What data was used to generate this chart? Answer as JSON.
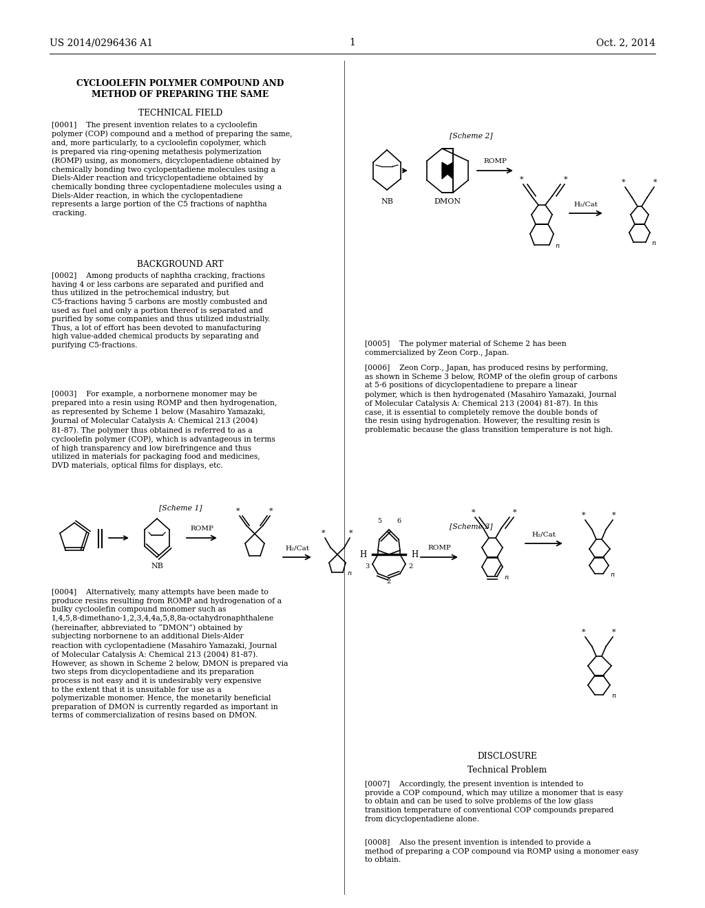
{
  "background_color": "#ffffff",
  "header_left": "US 2014/0296436 A1",
  "header_right": "Oct. 2, 2014",
  "header_center": "1",
  "title_line1": "CYCLOOLEFIN POLYMER COMPOUND AND",
  "title_line2": "METHOD OF PREPARING THE SAME",
  "section_technical": "TECHNICAL FIELD",
  "section_background": "BACKGROUND ART",
  "section_disclosure": "DISCLOSURE",
  "section_tech_problem": "Technical Problem",
  "para0001": "[0001]    The present invention relates to a cycloolefin polymer (COP) compound and a method of preparing the same, and, more particularly, to a cycloolefin copolymer, which is prepared via ring-opening metathesis polymerization (ROMP) using, as monomers, dicyclopentadiene obtained by chemically bonding two cyclopentadiene molecules using a Diels-Alder reaction and tricyclopentadiene obtained by chemically bonding three cyclopentadiene molecules using a Diels-Alder reaction, in which the cyclopentadiene represents a large portion of the C5 fractions of naphtha cracking.",
  "para0002": "[0002]    Among products of naphtha cracking, fractions having 4 or less carbons are separated and purified and thus utilized in the petrochemical industry, but C5-fractions having 5 carbons are mostly combusted and used as fuel and only a portion thereof is separated and purified by some companies and thus utilized industrially. Thus, a lot of effort has been devoted to manufacturing high value-added chemical products by separating and purifying C5-fractions.",
  "para0003": "[0003]    For example, a norbornene monomer may be prepared into a resin using ROMP and then hydrogenation, as represented by Scheme 1 below (Masahiro Yamazaki, Journal of Molecular Catalysis A: Chemical 213 (2004) 81-87). The polymer thus obtained is referred to as a cycloolefin polymer (COP), which is advantageous in terms of high transparency and low birefringence and thus utilized in materials for packaging food and medicines, DVD materials, optical films for displays, etc.",
  "para0004": "[0004]    Alternatively, many attempts have been made to produce resins resulting from ROMP and hydrogenation of a bulky cycloolefin compound monomer such as 1,4,5,8-dimethano-1,2,3,4,4a,5,8,8a-octahydronaphthalene (hereinafter, abbreviated to “DMON”) obtained by subjecting norbornene to an additional Diels-Alder reaction with cyclopentadiene (Masahiro Yamazaki, Journal of Molecular Catalysis A: Chemical 213 (2004) 81-87). However, as shown in Scheme 2 below, DMON is prepared via two steps from dicyclopentadiene and its preparation process is not easy and it is undesirably very expensive to the extent that it is unsuitable for use as a polymerizable monomer. Hence, the monetarily beneficial preparation of DMON is currently regarded as important in terms of commercialization of resins based on DMON.",
  "para0005": "[0005]    The polymer material of Scheme 2 has been commercialized by Zeon Corp., Japan.",
  "para0006": "[0006]    Zeon Corp., Japan, has produced resins by performing, as shown in Scheme 3 below, ROMP of the olefin group of carbons at 5-6 positions of dicyclopentadiene to prepare a linear polymer, which is then hydrogenated (Masahiro Yamazaki, Journal of Molecular Catalysis A: Chemical 213 (2004) 81-87). In this case, it is essential to completely remove the double bonds of the resin using hydrogenation. However, the resulting resin is problematic because the glass transition temperature is not high.",
  "para0007": "[0007]    Accordingly, the present invention is intended to provide a COP compound, which may utilize a monomer that is easy to obtain and can be used to solve problems of the low glass transition temperature of conventional COP compounds prepared from dicyclopentadiene alone.",
  "para0008": "[0008]    Also the present invention is intended to provide a method of preparing a COP compound via ROMP using a monomer easy to obtain."
}
